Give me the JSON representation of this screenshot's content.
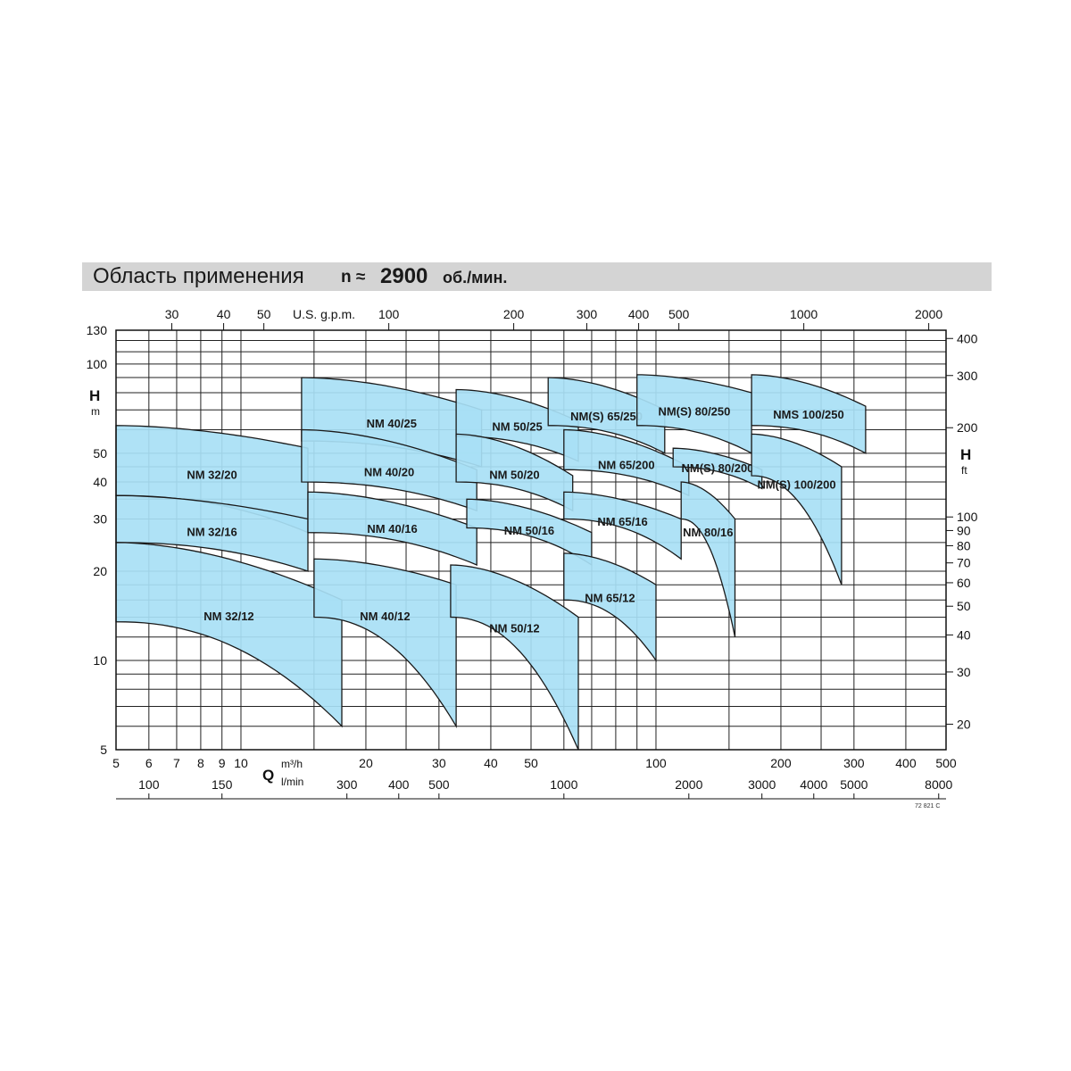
{
  "header": {
    "title": "Область применения",
    "n_label": "n ≈",
    "n_value": "2900",
    "n_unit": "об./мин."
  },
  "axes": {
    "h_label": "H",
    "h_unit_left": "m",
    "h_unit_right": "ft",
    "q_label": "Q",
    "q_unit_m3h": "m³/h",
    "q_unit_lmin": "l/min",
    "gpm_label": "U.S. g.p.m.",
    "doc_code": "72 821 C"
  },
  "chart_data": {
    "type": "area",
    "title": "Область применения n ≈ 2900 об./мин.",
    "x_scale": "log",
    "y_scale": "log",
    "xlim_m3h": [
      5,
      500
    ],
    "ylim_m": [
      5,
      130
    ],
    "grid": true,
    "x_ticks_m3h": [
      "5",
      "6",
      "7",
      "8",
      "9",
      "10",
      "20",
      "30",
      "40",
      "50",
      "100",
      "200",
      "300",
      "400",
      "500"
    ],
    "x_ticks_lmin": [
      "100",
      "150",
      "300",
      "400",
      "500",
      "1000",
      "2000",
      "3000",
      "4000",
      "5000",
      "8000"
    ],
    "x_ticks_gpm": [
      "30",
      "40",
      "50",
      "100",
      "200",
      "300",
      "400",
      "500",
      "1000",
      "2000"
    ],
    "y_ticks_m": [
      "5",
      "10",
      "20",
      "30",
      "40",
      "50",
      "100",
      "130"
    ],
    "y_ticks_ft": [
      "20",
      "30",
      "40",
      "50",
      "60",
      "70",
      "80",
      "90",
      "100",
      "200",
      "300",
      "400"
    ],
    "fill_color": "#a8dff5",
    "series": [
      {
        "name": "NM 32/20",
        "q": [
          5,
          14.5
        ],
        "h_top": [
          62,
          52
        ],
        "h_bottom": [
          36,
          27
        ]
      },
      {
        "name": "NM 32/16",
        "q": [
          5,
          14.5
        ],
        "h_top": [
          36,
          30
        ],
        "h_bottom": [
          25,
          20
        ]
      },
      {
        "name": "NM 32/12",
        "q": [
          5,
          17.5
        ],
        "h_top": [
          25,
          16
        ],
        "h_bottom": [
          13.5,
          6
        ]
      },
      {
        "name": "NM 40/25",
        "q": [
          14,
          38
        ],
        "h_top": [
          90,
          70
        ],
        "h_bottom": [
          55,
          45
        ]
      },
      {
        "name": "NM 40/20",
        "q": [
          14,
          37
        ],
        "h_top": [
          60,
          44
        ],
        "h_bottom": [
          40,
          32
        ]
      },
      {
        "name": "NM 40/16",
        "q": [
          14.5,
          37
        ],
        "h_top": [
          37,
          28
        ],
        "h_bottom": [
          27,
          21
        ]
      },
      {
        "name": "NM 40/12",
        "q": [
          15,
          33
        ],
        "h_top": [
          22,
          18
        ],
        "h_bottom": [
          14,
          6
        ]
      },
      {
        "name": "NM 50/25",
        "q": [
          33,
          65
        ],
        "h_top": [
          82,
          64
        ],
        "h_bottom": [
          57,
          47
        ]
      },
      {
        "name": "NM 50/20",
        "q": [
          33,
          63
        ],
        "h_top": [
          58,
          42
        ],
        "h_bottom": [
          40,
          32
        ]
      },
      {
        "name": "NM 50/16",
        "q": [
          35,
          70
        ],
        "h_top": [
          35,
          27
        ],
        "h_bottom": [
          28,
          21
        ]
      },
      {
        "name": "NM 50/12",
        "q": [
          32,
          65
        ],
        "h_top": [
          21,
          14
        ],
        "h_bottom": [
          14,
          5
        ]
      },
      {
        "name": "NM(S) 65/250",
        "q": [
          55,
          105
        ],
        "h_top": [
          90,
          70
        ],
        "h_bottom": [
          62,
          50
        ]
      },
      {
        "name": "NM 65/200",
        "q": [
          60,
          120
        ],
        "h_top": [
          60,
          45
        ],
        "h_bottom": [
          44,
          36
        ]
      },
      {
        "name": "NM 65/16",
        "q": [
          60,
          115
        ],
        "h_top": [
          37,
          30
        ],
        "h_bottom": [
          30,
          22
        ]
      },
      {
        "name": "NM 65/12",
        "q": [
          60,
          100
        ],
        "h_top": [
          23,
          18
        ],
        "h_bottom": [
          16,
          10
        ]
      },
      {
        "name": "NM(S) 80/250",
        "q": [
          90,
          170
        ],
        "h_top": [
          92,
          80
        ],
        "h_bottom": [
          62,
          50
        ]
      },
      {
        "name": "NM(S) 80/200",
        "q": [
          110,
          180
        ],
        "h_top": [
          52,
          44
        ],
        "h_bottom": [
          45,
          38
        ]
      },
      {
        "name": "NM 80/16",
        "q": [
          115,
          155
        ],
        "h_top": [
          40,
          30
        ],
        "h_bottom": [
          30,
          12
        ]
      },
      {
        "name": "NMS 100/250",
        "q": [
          170,
          320
        ],
        "h_top": [
          92,
          72
        ],
        "h_bottom": [
          62,
          50
        ]
      },
      {
        "name": "NM(S) 100/200",
        "q": [
          170,
          280
        ],
        "h_top": [
          58,
          45
        ],
        "h_bottom": [
          42,
          18
        ]
      }
    ]
  }
}
